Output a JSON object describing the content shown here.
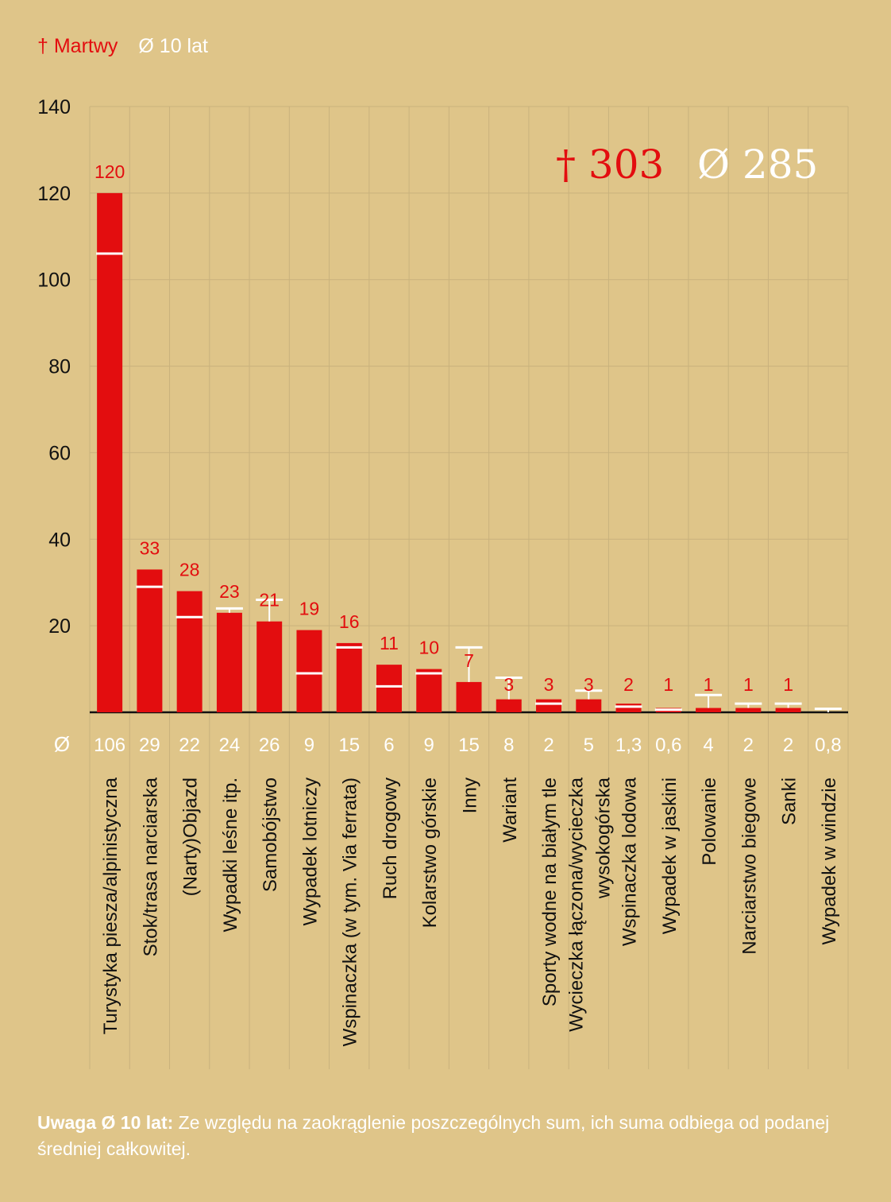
{
  "legend": {
    "dead_label": "† Martwy",
    "avg_label": "Ø 10 lat"
  },
  "totals": {
    "dead": "† 303",
    "avg": "Ø 285"
  },
  "avg_row_symbol": "Ø",
  "note": {
    "bold": "Uwaga Ø 10 lat:",
    "text": " Ze względu na zaokrąglenie poszczególnych sum, ich suma odbiega od podanej średniej całkowitej."
  },
  "colors": {
    "bar": "#e30d0f",
    "avg_marker": "#ffffff",
    "background": "#dfc589",
    "grid": "#c9b27d"
  },
  "chart_data": {
    "type": "bar",
    "title": "",
    "xlabel": "",
    "ylabel": "",
    "ylim": [
      0,
      140
    ],
    "yticks": [
      20,
      40,
      60,
      80,
      100,
      120,
      140
    ],
    "categories": [
      "Turystyka piesza/alpinistyczna",
      "Stok/trasa narciarska",
      "(Narty)Objazd",
      "Wypadki leśne itp.",
      "Samobójstwo",
      "Wypadek lotniczy",
      "Wspinaczka (w tym. Via ferrata)",
      "Ruch drogowy",
      "Kolarstwo górskie",
      "Inny",
      "Wariant",
      "Sporty wodne na białym tle",
      "Wycieczka łączona/wycieczka wysokogórska",
      "Wspinaczka lodowa",
      "Wypadek w jaskini",
      "Polowanie",
      "Narciarstwo biegowe",
      "Sanki",
      "Wypadek w windzie"
    ],
    "series": [
      {
        "name": "Martwy",
        "values": [
          120,
          33,
          28,
          23,
          21,
          19,
          16,
          11,
          10,
          7,
          3,
          3,
          3,
          2,
          1,
          1,
          1,
          1,
          0
        ]
      },
      {
        "name": "Ø 10 lat",
        "values": [
          106,
          29,
          22,
          24,
          26,
          9,
          15,
          6,
          9,
          15,
          8,
          2,
          5,
          1.3,
          0.6,
          4,
          2,
          2,
          0.8
        ]
      }
    ],
    "value_labels": [
      "120",
      "33",
      "28",
      "23",
      "21",
      "19",
      "16",
      "11",
      "10",
      "7",
      "3",
      "3",
      "3",
      "2",
      "1",
      "1",
      "1",
      "1",
      ""
    ],
    "avg_labels": [
      "106",
      "29",
      "22",
      "24",
      "26",
      "9",
      "15",
      "6",
      "9",
      "15",
      "8",
      "2",
      "5",
      "1,3",
      "0,6",
      "4",
      "2",
      "2",
      "0,8"
    ],
    "category_lines": [
      [
        "Turystyka piesza/alpinistyczna"
      ],
      [
        "Stok/trasa narciarska"
      ],
      [
        "(Narty)Objazd"
      ],
      [
        "Wypadki leśne itp."
      ],
      [
        "Samobójstwo"
      ],
      [
        "Wypadek lotniczy"
      ],
      [
        "Wspinaczka (w tym. Via ferrata)"
      ],
      [
        "Ruch drogowy"
      ],
      [
        "Kolarstwo górskie"
      ],
      [
        "Inny"
      ],
      [
        "Wariant"
      ],
      [
        "Sporty wodne na białym tle"
      ],
      [
        "Wycieczka łączona/wycieczka",
        "wysokogórska"
      ],
      [
        "Wspinaczka lodowa"
      ],
      [
        "Wypadek w jaskini"
      ],
      [
        "Polowanie"
      ],
      [
        "Narciarstwo biegowe"
      ],
      [
        "Sanki"
      ],
      [
        "Wypadek w windzie"
      ]
    ]
  }
}
